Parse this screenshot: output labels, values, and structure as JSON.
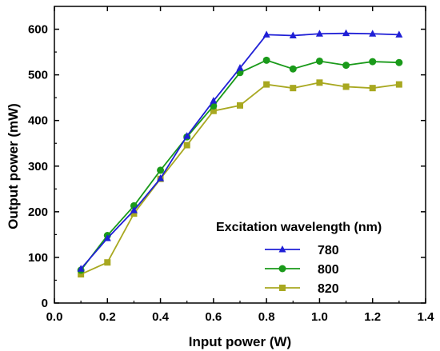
{
  "chart_data": {
    "type": "line",
    "xlabel": "Input power (W)",
    "ylabel": "Output power (mW)",
    "xlim": [
      0.0,
      1.4
    ],
    "ylim": [
      0,
      650
    ],
    "xticks": [
      0.0,
      0.2,
      0.4,
      0.6,
      0.8,
      1.0,
      1.2,
      1.4
    ],
    "xtick_labels": [
      "0.0",
      "0.2",
      "0.4",
      "0.6",
      "0.8",
      "1.0",
      "1.2",
      "1.4"
    ],
    "yticks": [
      0,
      100,
      200,
      300,
      400,
      500,
      600
    ],
    "ytick_labels": [
      "0",
      "100",
      "200",
      "300",
      "400",
      "500",
      "600"
    ],
    "grid": false,
    "legend": {
      "title": "Excitation wavelength (nm)",
      "position": "center-right"
    },
    "x": [
      0.1,
      0.2,
      0.3,
      0.4,
      0.5,
      0.6,
      0.7,
      0.8,
      0.9,
      1.0,
      1.1,
      1.2,
      1.3
    ],
    "series": [
      {
        "name": "780",
        "color": "#1f1fd6",
        "marker": "triangle",
        "values": [
          75,
          142,
          203,
          273,
          366,
          443,
          515,
          588,
          586,
          590,
          591,
          590,
          588
        ]
      },
      {
        "name": "800",
        "color": "#1a9a1a",
        "marker": "circle",
        "values": [
          72,
          148,
          213,
          291,
          364,
          432,
          505,
          532,
          513,
          530,
          521,
          529,
          527
        ]
      },
      {
        "name": "820",
        "color": "#a8a820",
        "marker": "square",
        "values": [
          63,
          89,
          196,
          272,
          346,
          421,
          433,
          479,
          471,
          483,
          474,
          471,
          479
        ]
      }
    ]
  }
}
